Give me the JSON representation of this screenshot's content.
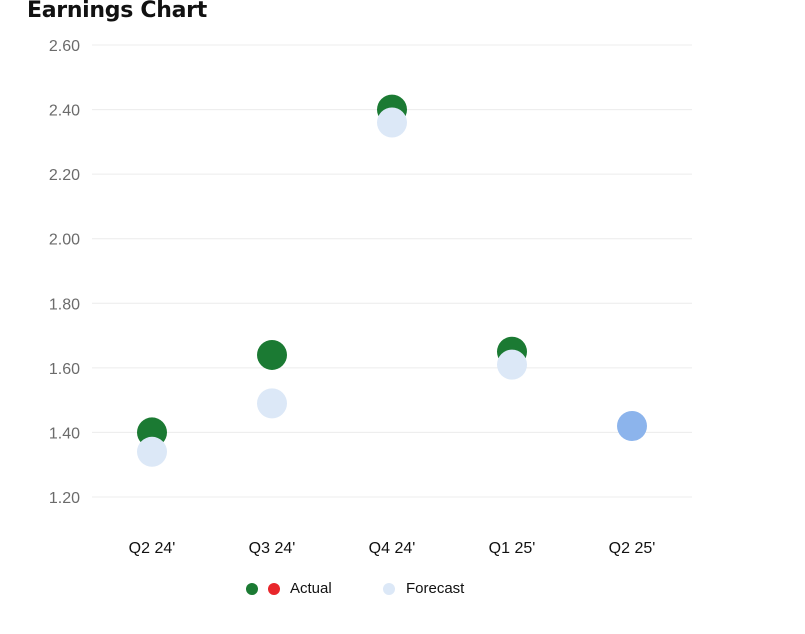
{
  "chart_data": {
    "type": "scatter",
    "title": "Earnings Chart",
    "categories": [
      "Q2 24'",
      "Q3 24'",
      "Q4 24'",
      "Q1 25'",
      "Q2 25'"
    ],
    "series": [
      {
        "name": "Actual",
        "values": [
          1.4,
          1.64,
          2.4,
          1.65,
          null
        ],
        "color": "#1b7a33"
      },
      {
        "name": "Forecast",
        "values": [
          1.34,
          1.49,
          2.36,
          1.61,
          1.42
        ],
        "color": "#dce8f7"
      }
    ],
    "upcoming_forecast_color": "#8cb4ec",
    "yticks": [
      "1.20",
      "1.40",
      "1.60",
      "1.80",
      "2.00",
      "2.20",
      "2.40",
      "2.60"
    ],
    "ylim": [
      1.2,
      2.6
    ],
    "grid": true,
    "legend_position": "bottom-center"
  },
  "legend": {
    "actual_label": "Actual",
    "forecast_label": "Forecast",
    "actual_colors": [
      "#1b7a33",
      "#e8262b"
    ],
    "forecast_color": "#dce8f7"
  }
}
